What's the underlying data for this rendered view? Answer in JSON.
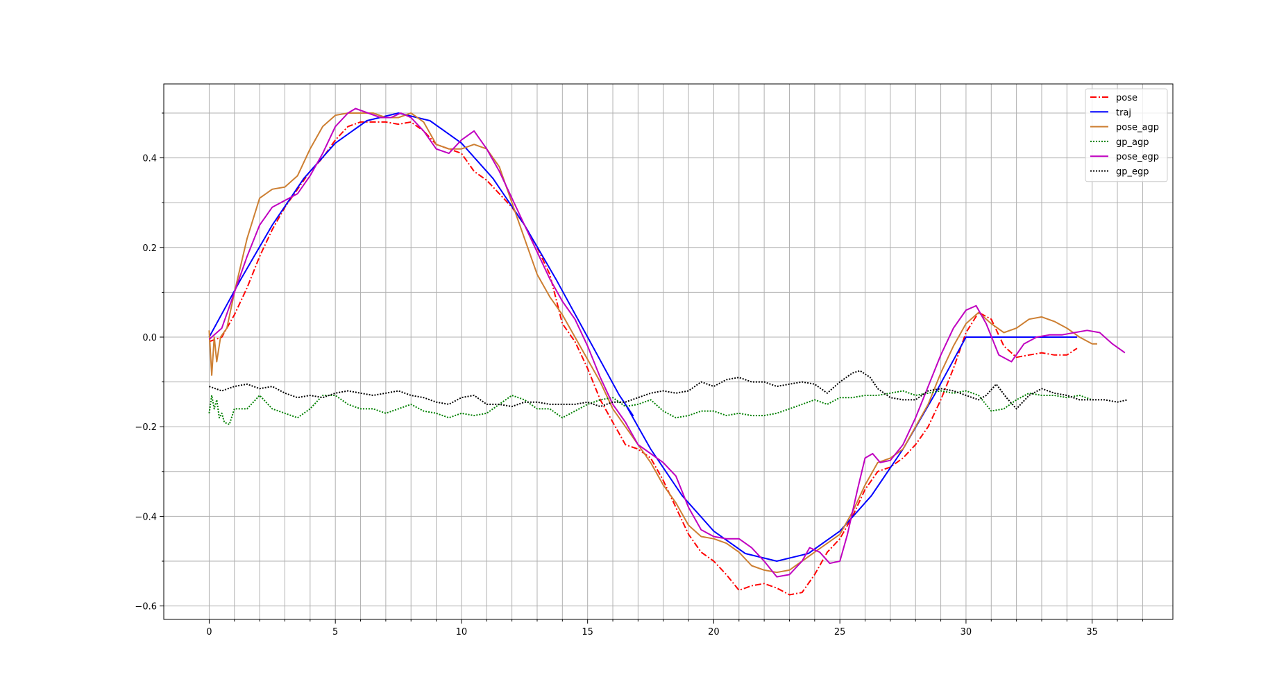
{
  "chart_data": {
    "type": "line",
    "title": "",
    "xlabel": "",
    "ylabel": "",
    "xlim": [
      -1.8,
      38.2
    ],
    "ylim": [
      -0.63,
      0.565
    ],
    "grid": true,
    "legend_position": "top-right",
    "x_ticks": [
      0,
      5,
      10,
      15,
      20,
      25,
      30,
      35
    ],
    "x_minor_ticks": [
      1,
      2,
      3,
      4,
      6,
      7,
      8,
      9,
      11,
      12,
      13,
      14,
      16,
      17,
      18,
      19,
      21,
      22,
      23,
      24,
      26,
      27,
      28,
      29,
      31,
      32,
      33,
      34,
      36,
      37
    ],
    "x_tick_labels": [
      "0",
      "5",
      "10",
      "15",
      "20",
      "25",
      "30",
      "35"
    ],
    "y_ticks": [
      -0.6,
      -0.4,
      -0.2,
      0.0,
      0.2,
      0.4
    ],
    "y_minor_ticks": [
      -0.5,
      -0.3,
      -0.1,
      0.1,
      0.3,
      0.5
    ],
    "y_tick_labels": [
      "−0.6",
      "−0.4",
      "−0.2",
      "0.0",
      "0.2",
      "0.4"
    ],
    "series": [
      {
        "name": "pose",
        "color": "#ff0000",
        "dash": "9,3,2,3",
        "x": [
          0,
          0.5,
          1,
          1.5,
          2,
          2.5,
          3,
          3.5,
          4,
          4.5,
          5,
          5.5,
          6,
          6.5,
          7,
          7.5,
          8,
          8.5,
          9,
          9.5,
          10,
          10.5,
          11,
          11.5,
          12,
          12.5,
          13,
          13.5,
          14,
          14.5,
          15,
          15.5,
          16,
          16.5,
          17,
          17.5,
          18,
          18.5,
          19,
          19.5,
          20,
          20.5,
          21,
          21.5,
          22,
          22.5,
          23,
          23.5,
          24,
          24.5,
          25,
          25.5,
          26,
          26.5,
          27,
          27.5,
          28,
          28.5,
          29,
          29.5,
          30,
          30.5,
          31,
          31.5,
          32,
          32.5,
          33,
          33.5,
          34,
          34.4
        ],
        "y": [
          -0.01,
          0.0,
          0.05,
          0.11,
          0.18,
          0.24,
          0.29,
          0.33,
          0.37,
          0.4,
          0.44,
          0.47,
          0.48,
          0.48,
          0.48,
          0.475,
          0.48,
          0.46,
          0.43,
          0.42,
          0.41,
          0.37,
          0.35,
          0.32,
          0.29,
          0.25,
          0.2,
          0.14,
          0.03,
          -0.01,
          -0.07,
          -0.14,
          -0.19,
          -0.24,
          -0.25,
          -0.27,
          -0.32,
          -0.38,
          -0.44,
          -0.48,
          -0.5,
          -0.53,
          -0.565,
          -0.555,
          -0.55,
          -0.56,
          -0.575,
          -0.57,
          -0.53,
          -0.48,
          -0.45,
          -0.4,
          -0.34,
          -0.3,
          -0.29,
          -0.27,
          -0.24,
          -0.2,
          -0.14,
          -0.07,
          0.01,
          0.055,
          0.04,
          -0.02,
          -0.045,
          -0.04,
          -0.035,
          -0.04,
          -0.04,
          -0.025
        ]
      },
      {
        "name": "traj",
        "color": "#0000ff",
        "dash": "",
        "x": [
          0,
          1.25,
          2.5,
          3.75,
          5,
          6.25,
          7.5,
          8.75,
          10,
          11.25,
          12.5,
          13.75,
          15,
          16.25,
          16.8,
          16.5,
          17.5,
          18.75,
          20,
          21.25,
          22.5,
          23.75,
          25,
          26.25,
          27.5,
          28.75,
          30,
          31,
          32,
          33,
          34,
          34.4
        ],
        "y": [
          0,
          0.129,
          0.25,
          0.354,
          0.433,
          0.483,
          0.5,
          0.483,
          0.433,
          0.354,
          0.25,
          0.129,
          0,
          -0.129,
          -0.175,
          -0.15,
          -0.25,
          -0.354,
          -0.433,
          -0.483,
          -0.5,
          -0.483,
          -0.433,
          -0.354,
          -0.25,
          -0.129,
          0,
          0,
          0,
          0,
          0,
          0
        ]
      },
      {
        "name": "pose_agp",
        "color": "#cd7f32",
        "dash": "",
        "x": [
          0,
          0.1,
          0.2,
          0.3,
          0.45,
          0.7,
          1,
          1.5,
          2,
          2.5,
          3,
          3.5,
          4,
          4.5,
          5,
          5.5,
          6,
          6.5,
          7,
          7.5,
          8,
          8.5,
          9,
          9.5,
          10,
          10.5,
          11,
          11.5,
          12,
          12.5,
          13,
          13.5,
          14,
          14.5,
          15,
          15.5,
          16,
          16.5,
          17,
          17.5,
          18,
          18.5,
          19,
          19.5,
          20,
          20.5,
          21,
          21.5,
          22,
          22.5,
          23,
          23.5,
          24,
          24.5,
          25,
          25.5,
          26,
          26.5,
          27,
          27.5,
          28,
          28.5,
          29,
          29.5,
          30,
          30.5,
          31,
          31.5,
          32,
          32.5,
          33,
          33.5,
          34,
          34.5,
          35,
          35.2
        ],
        "y": [
          0.015,
          -0.085,
          0.0,
          -0.055,
          0.0,
          0.02,
          0.1,
          0.22,
          0.31,
          0.33,
          0.335,
          0.36,
          0.42,
          0.47,
          0.495,
          0.5,
          0.5,
          0.5,
          0.49,
          0.49,
          0.5,
          0.48,
          0.43,
          0.42,
          0.42,
          0.43,
          0.42,
          0.38,
          0.3,
          0.22,
          0.14,
          0.09,
          0.05,
          0.0,
          -0.05,
          -0.1,
          -0.16,
          -0.2,
          -0.24,
          -0.28,
          -0.33,
          -0.37,
          -0.42,
          -0.445,
          -0.45,
          -0.46,
          -0.48,
          -0.51,
          -0.52,
          -0.525,
          -0.52,
          -0.5,
          -0.48,
          -0.46,
          -0.44,
          -0.39,
          -0.33,
          -0.28,
          -0.27,
          -0.25,
          -0.2,
          -0.15,
          -0.08,
          -0.02,
          0.03,
          0.055,
          0.03,
          0.01,
          0.02,
          0.04,
          0.045,
          0.035,
          0.02,
          0.0,
          -0.015,
          -0.015
        ]
      },
      {
        "name": "gp_agp",
        "color": "#008000",
        "dash": "2,2",
        "x": [
          0,
          0.1,
          0.2,
          0.3,
          0.4,
          0.5,
          0.6,
          0.8,
          1,
          1.5,
          2,
          2.5,
          3,
          3.5,
          4,
          4.5,
          5,
          5.5,
          6,
          6.5,
          7,
          7.5,
          8,
          8.5,
          9,
          9.5,
          10,
          10.5,
          11,
          11.5,
          12,
          12.5,
          13,
          13.5,
          14,
          14.5,
          15,
          15.5,
          16,
          16.5,
          17,
          17.5,
          18,
          18.5,
          19,
          19.5,
          20,
          20.5,
          21,
          21.5,
          22,
          22.5,
          23,
          23.5,
          24,
          24.5,
          25,
          25.5,
          26,
          26.5,
          27,
          27.5,
          28,
          28.5,
          29,
          29.5,
          30,
          30.5,
          31,
          31.5,
          32,
          32.5,
          33,
          33.5,
          34,
          34.5,
          35
        ],
        "y": [
          -0.17,
          -0.13,
          -0.16,
          -0.14,
          -0.18,
          -0.17,
          -0.19,
          -0.195,
          -0.16,
          -0.16,
          -0.13,
          -0.16,
          -0.17,
          -0.18,
          -0.16,
          -0.13,
          -0.13,
          -0.15,
          -0.16,
          -0.16,
          -0.17,
          -0.16,
          -0.15,
          -0.165,
          -0.17,
          -0.18,
          -0.17,
          -0.175,
          -0.17,
          -0.15,
          -0.13,
          -0.14,
          -0.16,
          -0.16,
          -0.18,
          -0.165,
          -0.15,
          -0.14,
          -0.135,
          -0.155,
          -0.15,
          -0.14,
          -0.165,
          -0.18,
          -0.175,
          -0.165,
          -0.165,
          -0.175,
          -0.17,
          -0.175,
          -0.175,
          -0.17,
          -0.16,
          -0.15,
          -0.14,
          -0.15,
          -0.135,
          -0.135,
          -0.13,
          -0.13,
          -0.125,
          -0.12,
          -0.13,
          -0.125,
          -0.12,
          -0.125,
          -0.12,
          -0.13,
          -0.165,
          -0.16,
          -0.14,
          -0.125,
          -0.13,
          -0.13,
          -0.135,
          -0.13,
          -0.14
        ]
      },
      {
        "name": "pose_egp",
        "color": "#c000c0",
        "dash": "",
        "x": [
          0,
          0.5,
          1,
          1.5,
          2,
          2.5,
          3,
          3.5,
          4,
          4.5,
          5,
          5.5,
          5.8,
          6.3,
          6.8,
          7.2,
          7.6,
          8,
          8.5,
          9,
          9.5,
          10,
          10.5,
          11,
          11.5,
          12,
          12.5,
          13,
          13.5,
          14,
          14.5,
          15,
          15.5,
          16,
          16.5,
          17,
          17.5,
          18,
          18.5,
          19,
          19.5,
          20,
          20.5,
          21,
          21.5,
          22,
          22.5,
          23,
          23.5,
          23.8,
          24.2,
          24.6,
          25,
          25.3,
          25.7,
          26,
          26.3,
          26.6,
          27,
          27.5,
          28,
          28.5,
          29,
          29.5,
          30,
          30.4,
          30.8,
          31.3,
          31.8,
          32.3,
          32.8,
          33.3,
          33.8,
          34.3,
          34.8,
          35.3,
          35.8,
          36.3
        ],
        "y": [
          -0.005,
          0.02,
          0.1,
          0.18,
          0.25,
          0.29,
          0.305,
          0.32,
          0.36,
          0.41,
          0.47,
          0.5,
          0.51,
          0.5,
          0.49,
          0.49,
          0.5,
          0.49,
          0.46,
          0.42,
          0.41,
          0.44,
          0.46,
          0.42,
          0.37,
          0.31,
          0.25,
          0.19,
          0.13,
          0.08,
          0.04,
          -0.02,
          -0.09,
          -0.15,
          -0.19,
          -0.24,
          -0.26,
          -0.28,
          -0.31,
          -0.38,
          -0.43,
          -0.445,
          -0.45,
          -0.45,
          -0.47,
          -0.5,
          -0.535,
          -0.53,
          -0.5,
          -0.47,
          -0.48,
          -0.505,
          -0.5,
          -0.44,
          -0.34,
          -0.27,
          -0.26,
          -0.28,
          -0.275,
          -0.24,
          -0.18,
          -0.11,
          -0.04,
          0.02,
          0.06,
          0.07,
          0.03,
          -0.04,
          -0.055,
          -0.015,
          0.0,
          0.005,
          0.005,
          0.01,
          0.015,
          0.01,
          -0.015,
          -0.035
        ]
      },
      {
        "name": "gp_egp",
        "color": "#000000",
        "dash": "2,2",
        "x": [
          0,
          0.5,
          1,
          1.5,
          2,
          2.5,
          3,
          3.5,
          4,
          4.5,
          5,
          5.5,
          6,
          6.5,
          7,
          7.5,
          8,
          8.5,
          9,
          9.5,
          10,
          10.5,
          11,
          11.5,
          12,
          12.5,
          13,
          13.5,
          14,
          14.5,
          15,
          15.5,
          16,
          16.5,
          17,
          17.5,
          18,
          18.5,
          19,
          19.5,
          20,
          20.5,
          21,
          21.5,
          22,
          22.5,
          23,
          23.5,
          24,
          24.5,
          25,
          25.5,
          25.8,
          26.2,
          26.5,
          27,
          27.5,
          28,
          28.5,
          29,
          29.5,
          30,
          30.5,
          30.8,
          31.2,
          31.6,
          32,
          32.5,
          33,
          33.5,
          34,
          34.5,
          35,
          35.5,
          36,
          36.4
        ],
        "y": [
          -0.11,
          -0.12,
          -0.11,
          -0.105,
          -0.115,
          -0.11,
          -0.125,
          -0.135,
          -0.13,
          -0.135,
          -0.125,
          -0.12,
          -0.125,
          -0.13,
          -0.125,
          -0.12,
          -0.13,
          -0.135,
          -0.145,
          -0.15,
          -0.135,
          -0.13,
          -0.15,
          -0.15,
          -0.155,
          -0.145,
          -0.145,
          -0.15,
          -0.15,
          -0.15,
          -0.145,
          -0.155,
          -0.145,
          -0.145,
          -0.135,
          -0.125,
          -0.12,
          -0.125,
          -0.12,
          -0.1,
          -0.11,
          -0.095,
          -0.09,
          -0.1,
          -0.1,
          -0.11,
          -0.105,
          -0.1,
          -0.105,
          -0.125,
          -0.1,
          -0.08,
          -0.075,
          -0.09,
          -0.115,
          -0.135,
          -0.14,
          -0.14,
          -0.12,
          -0.115,
          -0.12,
          -0.13,
          -0.14,
          -0.13,
          -0.105,
          -0.135,
          -0.16,
          -0.13,
          -0.115,
          -0.125,
          -0.13,
          -0.14,
          -0.14,
          -0.14,
          -0.145,
          -0.14
        ]
      }
    ]
  }
}
